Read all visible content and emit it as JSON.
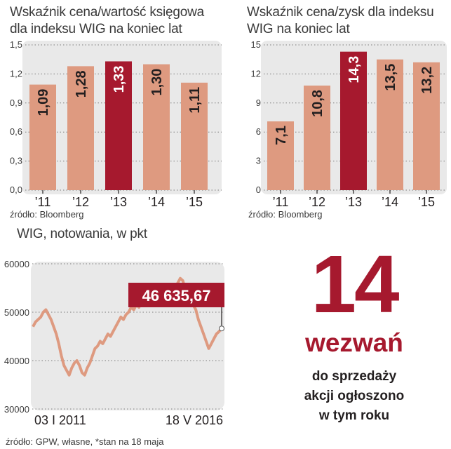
{
  "chart_data": [
    {
      "type": "bar",
      "title": "Wskaźnik cena/wartość księgowa\ndla indeksu WIG na koniec lat",
      "categories": [
        "’11",
        "’12",
        "’13",
        "’14",
        "’15"
      ],
      "values": [
        1.09,
        1.28,
        1.33,
        1.3,
        1.11
      ],
      "value_labels": [
        "1,09",
        "1,28",
        "1,33",
        "1,30",
        "1,11"
      ],
      "highlight_index": 2,
      "ylim": [
        0,
        1.5
      ],
      "yticks": [
        0,
        0.3,
        0.6,
        0.9,
        1.2,
        1.5
      ],
      "ytick_labels": [
        "0,0",
        "0,3",
        "0,6",
        "0,9",
        "1,2",
        "1,5"
      ],
      "source": "źródło: Bloomberg"
    },
    {
      "type": "bar",
      "title": "Wskaźnik cena/zysk dla indeksu\nWIG na koniec lat",
      "categories": [
        "’11",
        "’12",
        "’13",
        "’14",
        "’15"
      ],
      "values": [
        7.1,
        10.8,
        14.3,
        13.5,
        13.2
      ],
      "value_labels": [
        "7,1",
        "10,8",
        "14,3",
        "13,5",
        "13,2"
      ],
      "highlight_index": 2,
      "ylim": [
        0,
        15
      ],
      "yticks": [
        0,
        3,
        6,
        9,
        12,
        15
      ],
      "ytick_labels": [
        "0",
        "3",
        "6",
        "9",
        "12",
        "15"
      ],
      "source": "źródło: Bloomberg"
    },
    {
      "type": "line",
      "title": "WIG, notowania, w pkt",
      "x_start_label": "03 I 2011",
      "x_end_label": "18 V 2016",
      "ylim": [
        30000,
        60000
      ],
      "yticks": [
        30000,
        40000,
        50000,
        60000
      ],
      "ytick_labels": [
        "30000",
        "40000",
        "50000",
        "60000"
      ],
      "last_value": 46635.67,
      "last_value_label": "46 635,67",
      "series": [
        {
          "values": [
            47000,
            48000,
            48500,
            49000,
            50000,
            50500,
            49500,
            48500,
            47000,
            45500,
            43500,
            41000,
            39000,
            38000,
            37000,
            38500,
            39500,
            40000,
            39000,
            37500,
            37000,
            38500,
            39500,
            41000,
            42500,
            43000,
            44000,
            43500,
            44500,
            45500,
            45000,
            46000,
            47000,
            48000,
            49000,
            48500,
            49500,
            50000,
            51000,
            50500,
            51500,
            51000,
            52000,
            51500,
            52500,
            52000,
            53000,
            52500,
            52000,
            51500,
            52500,
            53500,
            54000,
            54500,
            55000,
            55500,
            56000,
            57000,
            56500,
            54500,
            53000,
            52500,
            51500,
            50500,
            48500,
            47000,
            45500,
            44000,
            42500,
            43500,
            44500,
            45500,
            46000,
            46635.67
          ]
        }
      ],
      "source": "źródło: GPW, własne, *stan na 18 maja"
    }
  ],
  "highlight": {
    "number": "14",
    "word": "wezwań",
    "lines": [
      "do sprzedaży",
      "akcji ogłoszono",
      "w tym roku"
    ]
  },
  "colors": {
    "bar": "#de9a80",
    "highlight": "#a6192e",
    "line": "#de9a80",
    "panel": "#e9e9e9"
  }
}
